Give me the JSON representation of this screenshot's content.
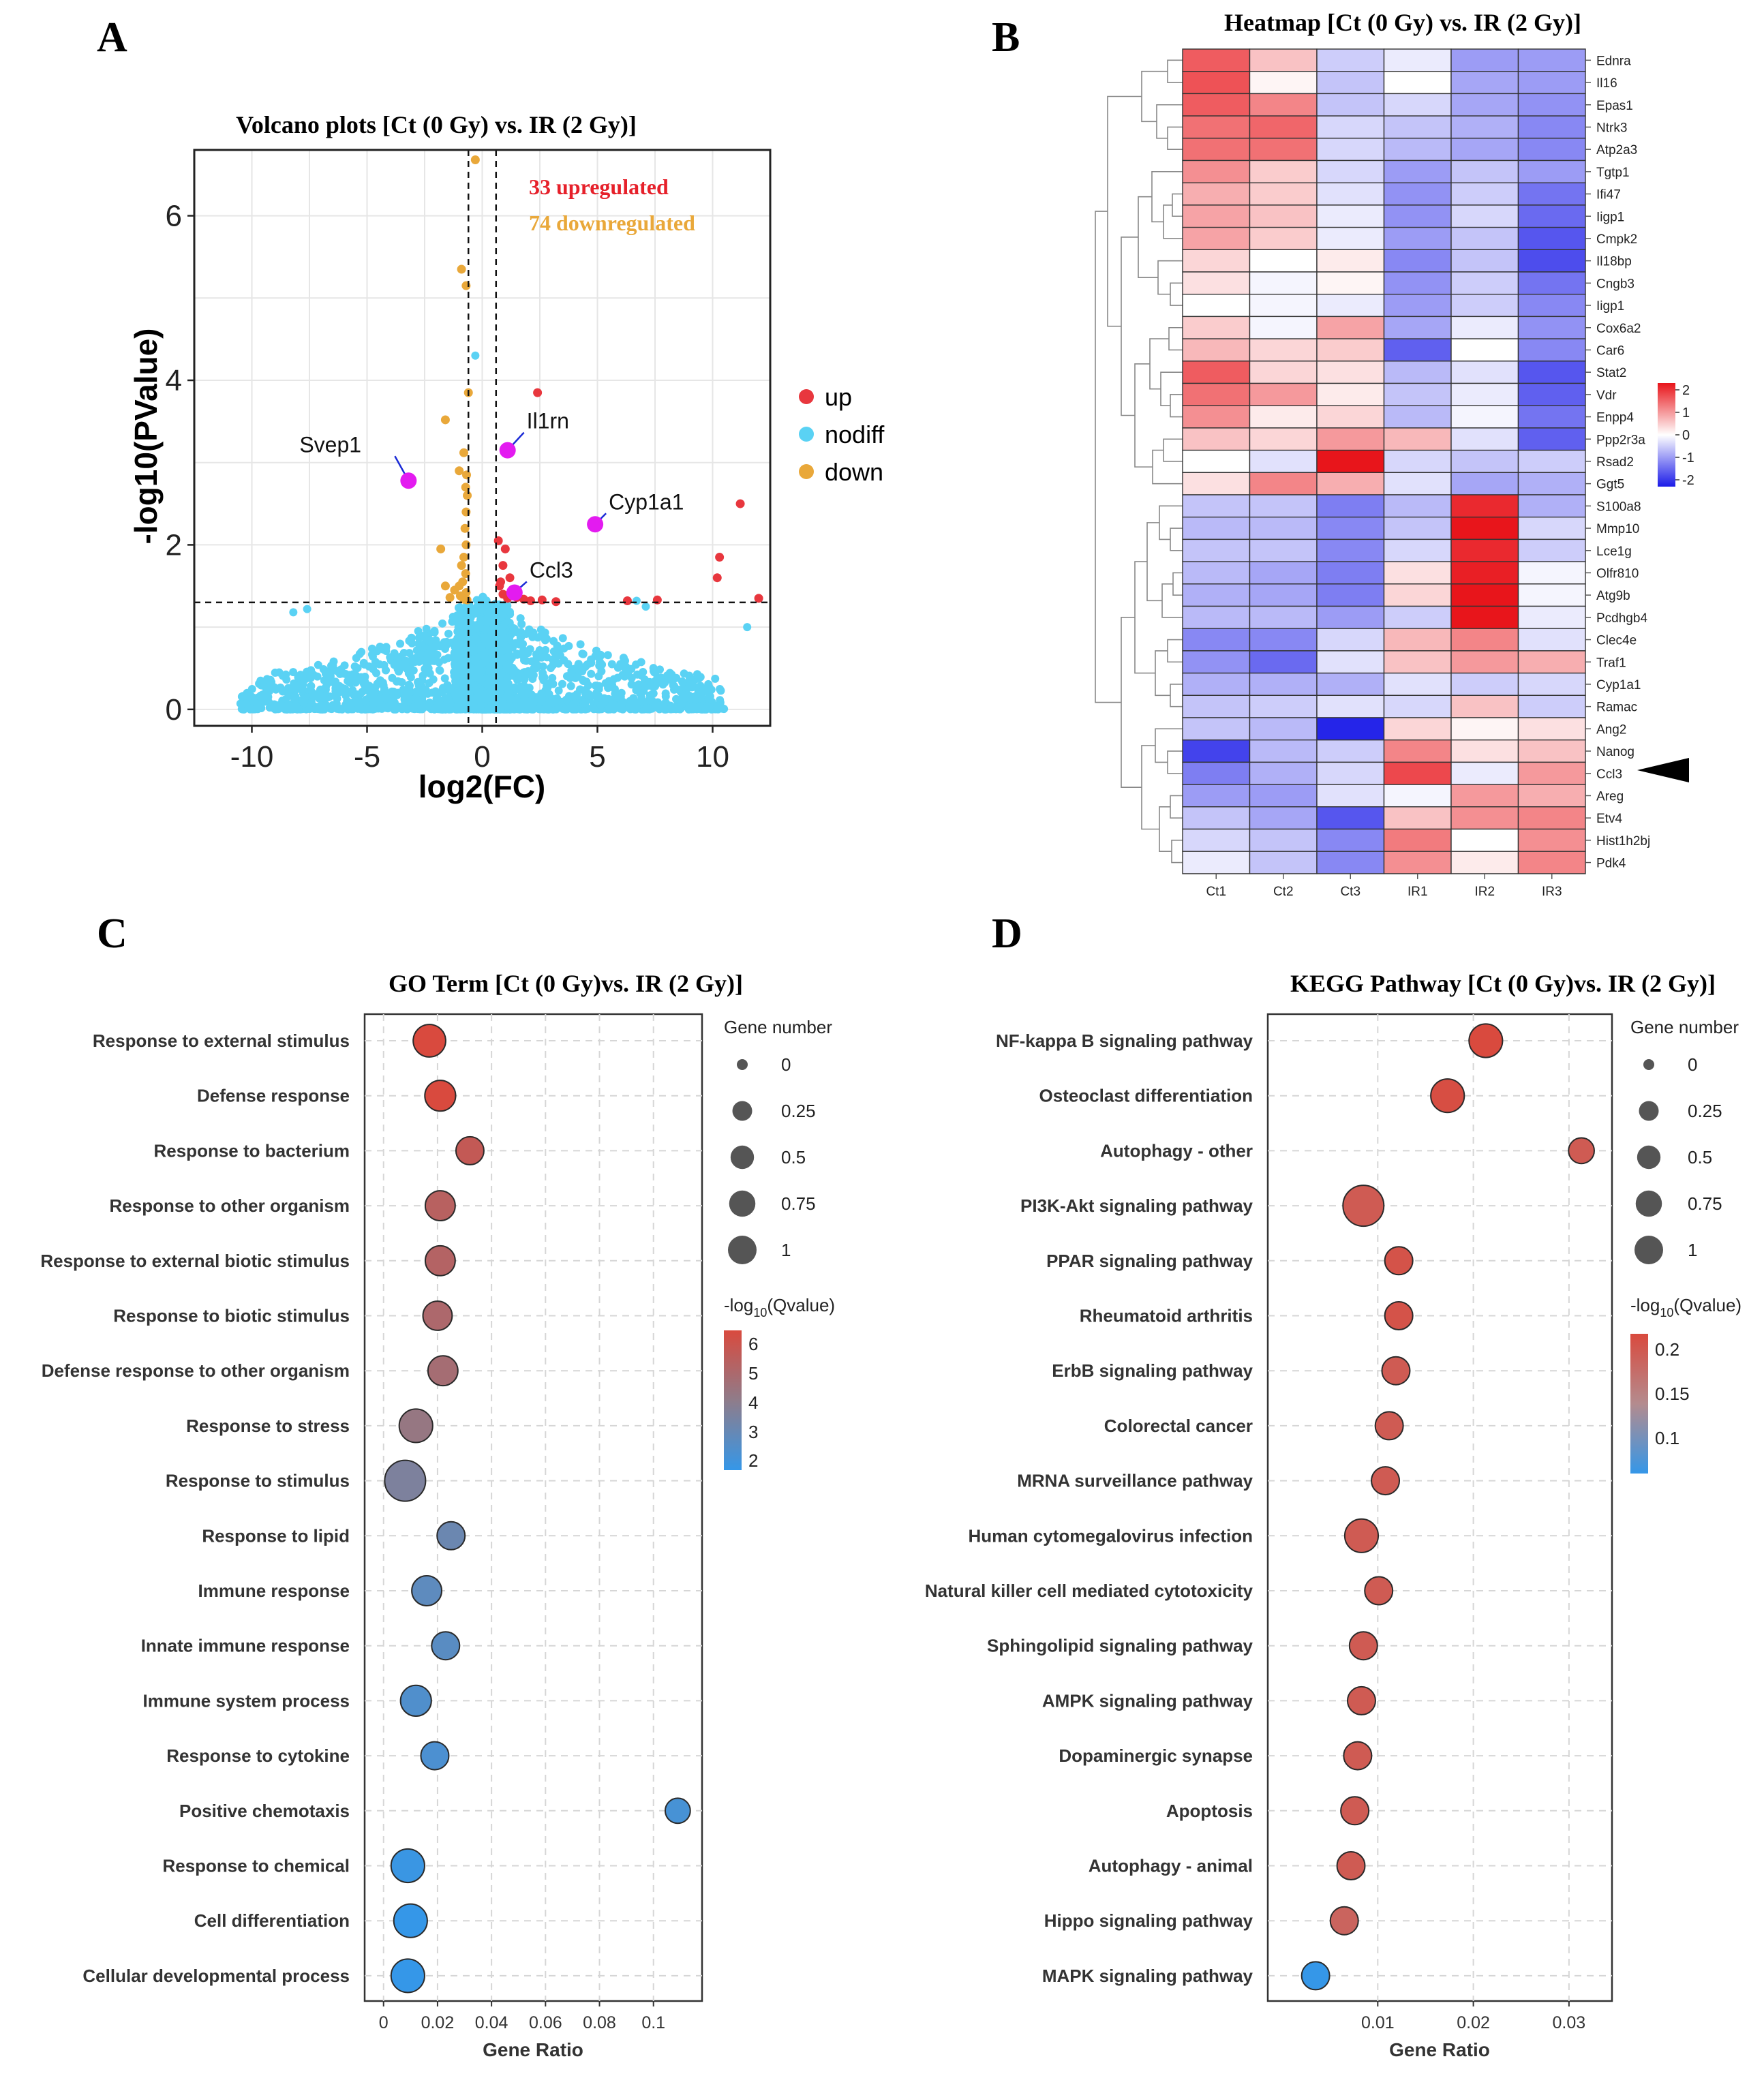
{
  "figure": {
    "panel_labels": [
      "A",
      "B",
      "C",
      "D"
    ]
  },
  "chart_data": [
    {
      "type": "scatter",
      "id": "volcano",
      "title": "Volcano plots [Ct (0 Gy) vs. IR (2 Gy)]",
      "xlabel": "log2(FC)",
      "ylabel": "-log10(PValue)",
      "xlim": [
        -12.5,
        12.5
      ],
      "ylim": [
        -0.2,
        6.8
      ],
      "xticks": [
        -10,
        -5,
        0,
        5,
        10
      ],
      "yticks": [
        0,
        2,
        4,
        6
      ],
      "tick_labels_x": [
        "-10",
        "-5",
        "0",
        "5",
        "10"
      ],
      "tick_labels_y": [
        "0",
        "2",
        "4",
        "6"
      ],
      "thresholds": {
        "x": [
          -0.6,
          0.6
        ],
        "y": 1.3
      },
      "annotations": [
        "33 upregulated",
        "74 downregulated"
      ],
      "legend": [
        "up",
        "nodiff",
        "down"
      ],
      "colors": {
        "up": "#e8373e",
        "nodiff": "#5ad2f4",
        "down": "#e9a83a",
        "highlight": "#e31bf0",
        "up_text": "#e6202a",
        "down_text": "#e9a83a"
      },
      "labeled_genes": [
        {
          "name": "Svep1",
          "x": -3.2,
          "y": 2.78
        },
        {
          "name": "Il1rn",
          "x": 1.1,
          "y": 3.15
        },
        {
          "name": "Cyp1a1",
          "x": 4.9,
          "y": 2.25
        },
        {
          "name": "Ccl3",
          "x": 1.4,
          "y": 1.42
        }
      ],
      "up_points": [
        [
          2.4,
          3.85
        ],
        [
          11.2,
          2.5
        ],
        [
          10.3,
          1.85
        ],
        [
          10.2,
          1.6
        ],
        [
          12.0,
          1.35
        ],
        [
          6.3,
          1.32
        ],
        [
          7.6,
          1.33
        ],
        [
          0.7,
          2.05
        ],
        [
          1.0,
          1.95
        ],
        [
          0.9,
          1.75
        ],
        [
          1.2,
          1.6
        ],
        [
          0.8,
          1.55
        ],
        [
          0.9,
          1.4
        ],
        [
          1.1,
          1.35
        ],
        [
          1.5,
          1.36
        ],
        [
          1.8,
          1.34
        ],
        [
          2.1,
          1.32
        ],
        [
          2.6,
          1.33
        ],
        [
          3.2,
          1.31
        ],
        [
          1.3,
          1.45
        ],
        [
          0.75,
          1.5
        ]
      ],
      "down_points": [
        [
          -0.3,
          6.68
        ],
        [
          -0.9,
          5.35
        ],
        [
          -0.7,
          5.15
        ],
        [
          -0.6,
          3.85
        ],
        [
          -1.6,
          3.52
        ],
        [
          -0.8,
          3.12
        ],
        [
          -1.0,
          2.9
        ],
        [
          -1.8,
          1.95
        ],
        [
          -0.65,
          2.6
        ],
        [
          -0.7,
          2.4
        ],
        [
          -0.75,
          2.2
        ],
        [
          -0.7,
          2.0
        ],
        [
          -0.8,
          1.85
        ],
        [
          -0.9,
          1.75
        ],
        [
          -0.72,
          1.65
        ],
        [
          -0.85,
          1.55
        ],
        [
          -1.0,
          1.5
        ],
        [
          -1.2,
          1.45
        ],
        [
          -0.7,
          1.42
        ],
        [
          -0.95,
          1.38
        ],
        [
          -1.4,
          1.36
        ],
        [
          -0.8,
          1.34
        ],
        [
          -0.66,
          1.33
        ],
        [
          -1.6,
          1.5
        ],
        [
          -0.68,
          2.85
        ],
        [
          -0.72,
          2.7
        ]
      ],
      "nodiff_extra": [
        [
          -0.3,
          4.3
        ],
        [
          6.7,
          1.32
        ],
        [
          -7.6,
          1.22
        ],
        [
          -8.2,
          1.18
        ],
        [
          7.1,
          1.25
        ],
        [
          11.5,
          1.0
        ]
      ]
    },
    {
      "type": "heatmap",
      "id": "heatmap",
      "title": "Heatmap [Ct (0 Gy) vs. IR (2 Gy)]",
      "columns": [
        "Ct1",
        "Ct2",
        "Ct3",
        "IR1",
        "IR2",
        "IR3"
      ],
      "rows": [
        "Ednra",
        "Il16",
        "Epas1",
        "Ntrk3",
        "Atp2a3",
        "Tgtp1",
        "Ifi47",
        "Iigp1",
        "Cmpk2",
        "Il18bp",
        "Cngb3",
        "Iigp1",
        "Cox6a2",
        "Car6",
        "Stat2",
        "Vdr",
        "Enpp4",
        "Ppp2r3a",
        "Rsad2",
        "Ggt5",
        "S100a8",
        "Mmp10",
        "Lce1g",
        "Olfr810",
        "Atg9b",
        "Pcdhgb4",
        "Clec4e",
        "Traf1",
        "Cyp1a1",
        "Ramac",
        "Ang2",
        "Nanog",
        "Ccl3",
        "Areg",
        "Etv4",
        "Hist1h2bj",
        "Pdk4"
      ],
      "values": [
        [
          1.6,
          0.6,
          -0.5,
          -0.2,
          -1.0,
          -1.0
        ],
        [
          1.7,
          0.1,
          -0.6,
          0.0,
          -0.9,
          -1.0
        ],
        [
          1.6,
          1.2,
          -0.6,
          -0.4,
          -0.9,
          -1.1
        ],
        [
          1.4,
          1.5,
          -0.4,
          -0.6,
          -0.8,
          -1.2
        ],
        [
          1.4,
          1.4,
          -0.4,
          -0.7,
          -0.9,
          -1.2
        ],
        [
          1.1,
          0.5,
          -0.4,
          -1.0,
          -0.6,
          -1.0
        ],
        [
          0.8,
          0.5,
          -0.3,
          -1.1,
          -0.5,
          -1.4
        ],
        [
          0.9,
          0.6,
          -0.2,
          -1.1,
          -0.4,
          -1.5
        ],
        [
          0.9,
          0.5,
          -0.2,
          -1.0,
          -0.6,
          -1.7
        ],
        [
          0.4,
          0.0,
          0.2,
          -1.2,
          -0.6,
          -1.8
        ],
        [
          0.3,
          -0.1,
          0.1,
          -1.1,
          -0.5,
          -1.4
        ],
        [
          0.0,
          -0.1,
          -0.2,
          -1.0,
          -0.5,
          -1.2
        ],
        [
          0.5,
          -0.1,
          0.9,
          -0.9,
          -0.2,
          -1.1
        ],
        [
          0.7,
          0.4,
          0.5,
          -1.6,
          0.0,
          -1.2
        ],
        [
          1.6,
          0.4,
          0.3,
          -0.7,
          -0.3,
          -1.7
        ],
        [
          1.4,
          1.0,
          0.2,
          -0.6,
          -0.2,
          -1.6
        ],
        [
          1.1,
          0.2,
          0.4,
          -0.7,
          -0.1,
          -1.4
        ],
        [
          0.6,
          0.4,
          1.0,
          0.7,
          -0.3,
          -1.6
        ],
        [
          0.0,
          -0.3,
          2.5,
          -0.4,
          -0.6,
          -0.5
        ],
        [
          0.3,
          1.2,
          0.8,
          -0.3,
          -0.9,
          -0.8
        ],
        [
          -0.6,
          -0.6,
          -1.3,
          -0.7,
          2.1,
          -0.8
        ],
        [
          -0.7,
          -0.7,
          -1.2,
          -0.6,
          2.3,
          -0.4
        ],
        [
          -0.6,
          -0.6,
          -1.2,
          -0.4,
          2.1,
          -0.5
        ],
        [
          -0.7,
          -0.9,
          -1.3,
          0.3,
          2.2,
          -0.1
        ],
        [
          -0.8,
          -0.9,
          -1.3,
          0.4,
          2.3,
          -0.1
        ],
        [
          -0.7,
          -0.7,
          -1.0,
          -0.5,
          2.6,
          -0.2
        ],
        [
          -1.2,
          -1.2,
          -0.4,
          0.7,
          1.2,
          -0.3
        ],
        [
          -1.1,
          -1.5,
          -0.3,
          0.6,
          1.0,
          0.8
        ],
        [
          -0.8,
          -0.8,
          -0.8,
          -0.3,
          -0.5,
          -0.4
        ],
        [
          -0.6,
          -0.5,
          -0.3,
          -0.4,
          0.6,
          -0.5
        ],
        [
          -0.6,
          -0.7,
          -2.2,
          0.4,
          0.1,
          0.3
        ],
        [
          -1.9,
          -0.7,
          -0.5,
          1.2,
          0.3,
          0.6
        ],
        [
          -1.3,
          -0.8,
          -0.4,
          1.8,
          -0.2,
          1.0
        ],
        [
          -1.0,
          -1.0,
          -0.3,
          -0.1,
          1.0,
          0.8
        ],
        [
          -0.6,
          -0.9,
          -1.7,
          0.6,
          1.1,
          1.2
        ],
        [
          -0.4,
          -0.6,
          -1.2,
          1.3,
          0.0,
          1.1
        ],
        [
          -0.2,
          -0.6,
          -1.2,
          1.1,
          0.2,
          1.2
        ]
      ],
      "scale_ticks": [
        "2",
        "1",
        "0",
        "-1",
        "-2"
      ],
      "marked_row": "Ccl3"
    },
    {
      "type": "scatter",
      "id": "go",
      "title": "GO Term [Ct (0 Gy)vs. IR (2 Gy)]",
      "xlabel": "Gene Ratio",
      "xticks": [
        "0",
        "0.02",
        "0.04",
        "0.06",
        "0.08",
        "0.1"
      ],
      "xlim": [
        -0.007,
        0.118
      ],
      "size_legend_title": "Gene number",
      "size_legend": [
        "0",
        "0.25",
        "0.5",
        "0.75",
        "1"
      ],
      "color_legend_title": "-log10(Qvalue)",
      "color_legend_ticks": [
        "6",
        "5",
        "4",
        "3",
        "2"
      ],
      "color_range": [
        2,
        6
      ],
      "terms": [
        "Response to external stimulus",
        "Defense response",
        "Response to bacterium",
        "Response to other organism",
        "Response to external biotic stimulus",
        "Response to biotic stimulus",
        "Defense response to other organism",
        "Response to stress",
        "Response to stimulus",
        "Response to lipid",
        "Immune response",
        "Innate immune response",
        "Immune system process",
        "Response to cytokine",
        "Positive chemotaxis",
        "Response to chemical",
        "Cell differentiation",
        "Cellular developmental process"
      ],
      "gene_ratio": [
        0.017,
        0.021,
        0.032,
        0.021,
        0.021,
        0.02,
        0.022,
        0.012,
        0.008,
        0.025,
        0.016,
        0.023,
        0.012,
        0.019,
        0.109,
        0.009,
        0.01,
        0.009
      ],
      "gene_number": [
        0.5,
        0.42,
        0.3,
        0.38,
        0.38,
        0.35,
        0.38,
        0.55,
        1.0,
        0.3,
        0.38,
        0.3,
        0.42,
        0.3,
        0.2,
        0.55,
        0.55,
        0.55
      ],
      "qvalue": [
        6.3,
        6.0,
        5.4,
        5.1,
        5.0,
        4.8,
        4.6,
        4.2,
        3.6,
        3.2,
        2.9,
        2.8,
        2.6,
        2.5,
        2.4,
        2.1,
        2.0,
        1.9
      ]
    },
    {
      "type": "scatter",
      "id": "kegg",
      "title": "KEGG Pathway [Ct (0 Gy)vs. IR (2 Gy)]",
      "xlabel": "Gene Ratio",
      "xticks": [
        "0.01",
        "0.02",
        "0.03"
      ],
      "xlim": [
        -0.0015,
        0.0345
      ],
      "size_legend_title": "Gene number",
      "size_legend": [
        "0",
        "0.25",
        "0.5",
        "0.75",
        "1"
      ],
      "color_legend_title": "-log10(Qvalue)",
      "color_legend_ticks": [
        "0.2",
        "0.15",
        "0.1"
      ],
      "color_range": [
        0.07,
        0.22
      ],
      "terms": [
        "NF-kappa B signaling pathway",
        "Osteoclast differentiation",
        "Autophagy - other",
        "PI3K-Akt signaling pathway",
        "PPAR signaling pathway",
        "Rheumatoid arthritis",
        "ErbB signaling pathway",
        "Colorectal cancer",
        "MRNA surveillance pathway",
        "Human cytomegalovirus infection",
        "Natural killer cell mediated cytotoxicity",
        "Sphingolipid signaling pathway",
        "AMPK signaling pathway",
        "Dopaminergic synapse",
        "Apoptosis",
        "Autophagy - animal",
        "Hippo signaling pathway",
        "MAPK signaling pathway"
      ],
      "gene_ratio": [
        0.0213,
        0.0173,
        0.0313,
        0.0085,
        0.0122,
        0.0122,
        0.0119,
        0.0112,
        0.0108,
        0.0083,
        0.0101,
        0.0085,
        0.0083,
        0.0079,
        0.0076,
        0.0072,
        0.0065,
        0.0035
      ],
      "gene_number": [
        0.55,
        0.55,
        0.22,
        1.0,
        0.3,
        0.3,
        0.3,
        0.3,
        0.3,
        0.55,
        0.3,
        0.3,
        0.3,
        0.3,
        0.3,
        0.3,
        0.3,
        0.3
      ],
      "qvalue": [
        0.22,
        0.215,
        0.2,
        0.2,
        0.21,
        0.21,
        0.2,
        0.2,
        0.2,
        0.2,
        0.2,
        0.2,
        0.2,
        0.2,
        0.2,
        0.2,
        0.19,
        0.07
      ]
    }
  ]
}
